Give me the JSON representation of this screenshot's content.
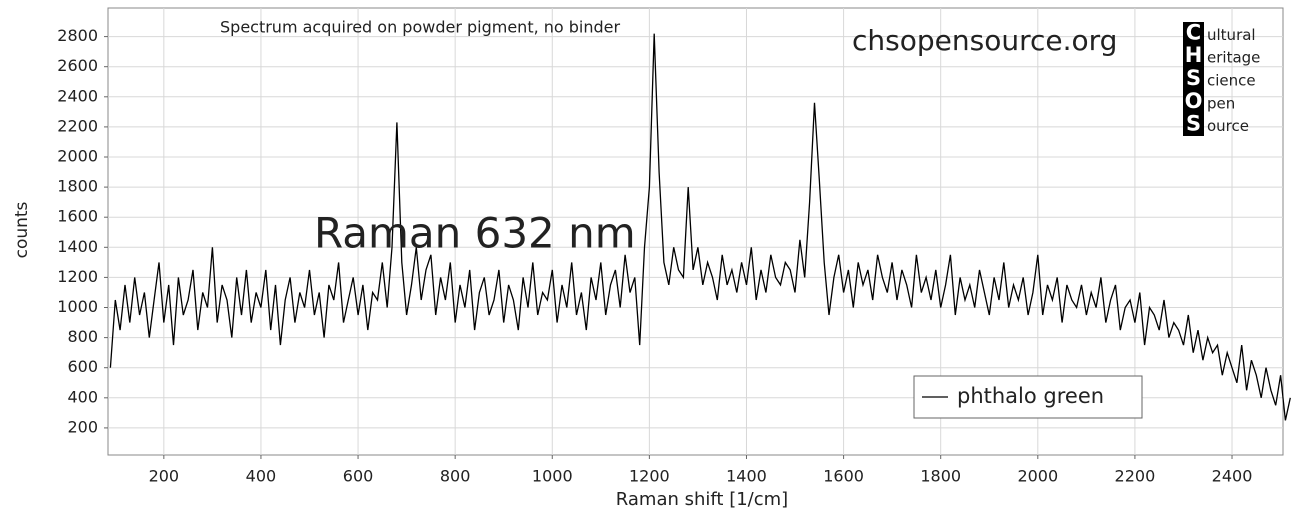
{
  "chart_data": {
    "type": "line",
    "title": "Spectrum acquired on powder pigment, no binder",
    "annotation": "Raman 632 nm",
    "watermark": "chsopensource.org",
    "logo": {
      "letters": [
        "C",
        "H",
        "S",
        "O",
        "S"
      ],
      "words": [
        "ultural",
        "eritage",
        "cience",
        "pen",
        "ource"
      ]
    },
    "x_label": "Raman shift [1/cm]",
    "y_label": "counts",
    "xlim": [
      85,
      2505
    ],
    "ylim": [
      20,
      2990
    ],
    "xticks": [
      200,
      400,
      600,
      800,
      1000,
      1200,
      1400,
      1600,
      1800,
      2000,
      2200,
      2400
    ],
    "yticks": [
      200,
      400,
      600,
      800,
      1000,
      1200,
      1400,
      1600,
      1800,
      2000,
      2200,
      2400,
      2600,
      2800
    ],
    "grid": true,
    "legend": "lower right",
    "x": [
      90,
      100,
      110,
      120,
      130,
      140,
      150,
      160,
      170,
      180,
      190,
      200,
      210,
      220,
      230,
      240,
      250,
      260,
      270,
      280,
      290,
      300,
      310,
      320,
      330,
      340,
      350,
      360,
      370,
      380,
      390,
      400,
      410,
      420,
      430,
      440,
      450,
      460,
      470,
      480,
      490,
      500,
      510,
      520,
      530,
      540,
      550,
      560,
      570,
      580,
      590,
      600,
      610,
      620,
      630,
      640,
      650,
      660,
      670,
      680,
      690,
      700,
      710,
      720,
      730,
      740,
      750,
      760,
      770,
      780,
      790,
      800,
      810,
      820,
      830,
      840,
      850,
      860,
      870,
      880,
      890,
      900,
      910,
      920,
      930,
      940,
      950,
      960,
      970,
      980,
      990,
      1000,
      1010,
      1020,
      1030,
      1040,
      1050,
      1060,
      1070,
      1080,
      1090,
      1100,
      1110,
      1120,
      1130,
      1140,
      1150,
      1160,
      1170,
      1180,
      1190,
      1200,
      1210,
      1220,
      1230,
      1240,
      1250,
      1260,
      1270,
      1280,
      1290,
      1300,
      1310,
      1320,
      1330,
      1340,
      1350,
      1360,
      1370,
      1380,
      1390,
      1400,
      1410,
      1420,
      1430,
      1440,
      1450,
      1460,
      1470,
      1480,
      1490,
      1500,
      1510,
      1520,
      1530,
      1540,
      1550,
      1560,
      1570,
      1580,
      1590,
      1600,
      1610,
      1620,
      1630,
      1640,
      1650,
      1660,
      1670,
      1680,
      1690,
      1700,
      1710,
      1720,
      1730,
      1740,
      1750,
      1760,
      1770,
      1780,
      1790,
      1800,
      1810,
      1820,
      1830,
      1840,
      1850,
      1860,
      1870,
      1880,
      1890,
      1900,
      1910,
      1920,
      1930,
      1940,
      1950,
      1960,
      1970,
      1980,
      1990,
      2000,
      2010,
      2020,
      2030,
      2040,
      2050,
      2060,
      2070,
      2080,
      2090,
      2100,
      2110,
      2120,
      2130,
      2140,
      2150,
      2160,
      2170,
      2180,
      2190,
      2200,
      2210,
      2220,
      2230,
      2240,
      2250,
      2260,
      2270,
      2280,
      2290,
      2300,
      2310,
      2320,
      2330,
      2340,
      2350,
      2360,
      2370,
      2380,
      2390,
      2400,
      2410,
      2420,
      2430,
      2440,
      2450,
      2460,
      2470,
      2480,
      2490,
      2500,
      2510,
      2520
    ],
    "series": [
      {
        "name": "phthalo green",
        "color": "#000000",
        "values": [
          600,
          1050,
          850,
          1150,
          900,
          1200,
          950,
          1100,
          800,
          1050,
          1300,
          900,
          1150,
          750,
          1200,
          950,
          1050,
          1250,
          850,
          1100,
          1000,
          1400,
          900,
          1150,
          1050,
          800,
          1200,
          950,
          1250,
          900,
          1100,
          1000,
          1250,
          850,
          1150,
          750,
          1050,
          1200,
          900,
          1100,
          1000,
          1250,
          950,
          1100,
          800,
          1150,
          1050,
          1300,
          900,
          1050,
          1200,
          950,
          1150,
          850,
          1100,
          1050,
          1300,
          1000,
          1400,
          2230,
          1300,
          950,
          1150,
          1400,
          1050,
          1250,
          1350,
          950,
          1200,
          1050,
          1300,
          900,
          1150,
          1000,
          1250,
          850,
          1100,
          1200,
          950,
          1050,
          1250,
          900,
          1150,
          1050,
          850,
          1200,
          1000,
          1300,
          950,
          1100,
          1050,
          1250,
          900,
          1150,
          1000,
          1300,
          950,
          1100,
          850,
          1200,
          1050,
          1300,
          950,
          1150,
          1250,
          1000,
          1350,
          1100,
          1200,
          750,
          1400,
          1800,
          2820,
          1900,
          1300,
          1150,
          1400,
          1250,
          1200,
          1800,
          1250,
          1400,
          1150,
          1300,
          1200,
          1050,
          1350,
          1150,
          1250,
          1100,
          1300,
          1150,
          1400,
          1050,
          1250,
          1100,
          1350,
          1200,
          1150,
          1300,
          1250,
          1100,
          1450,
          1200,
          1700,
          2360,
          1850,
          1300,
          950,
          1200,
          1350,
          1100,
          1250,
          1000,
          1300,
          1150,
          1250,
          1050,
          1350,
          1200,
          1100,
          1300,
          1050,
          1250,
          1150,
          1000,
          1350,
          1100,
          1200,
          1050,
          1250,
          1000,
          1150,
          1350,
          950,
          1200,
          1050,
          1150,
          1000,
          1250,
          1100,
          950,
          1200,
          1050,
          1300,
          1000,
          1150,
          1050,
          1200,
          950,
          1100,
          1350,
          950,
          1150,
          1050,
          1200,
          900,
          1150,
          1050,
          1000,
          1150,
          950,
          1100,
          1000,
          1200,
          900,
          1050,
          1150,
          850,
          1000,
          1050,
          900,
          1100,
          750,
          1000,
          950,
          850,
          1050,
          800,
          900,
          850,
          750,
          950,
          700,
          850,
          650,
          800,
          700,
          750,
          550,
          700,
          600,
          500,
          750,
          450,
          650,
          550,
          400,
          600,
          450,
          350,
          550,
          250,
          400
        ]
      }
    ]
  }
}
